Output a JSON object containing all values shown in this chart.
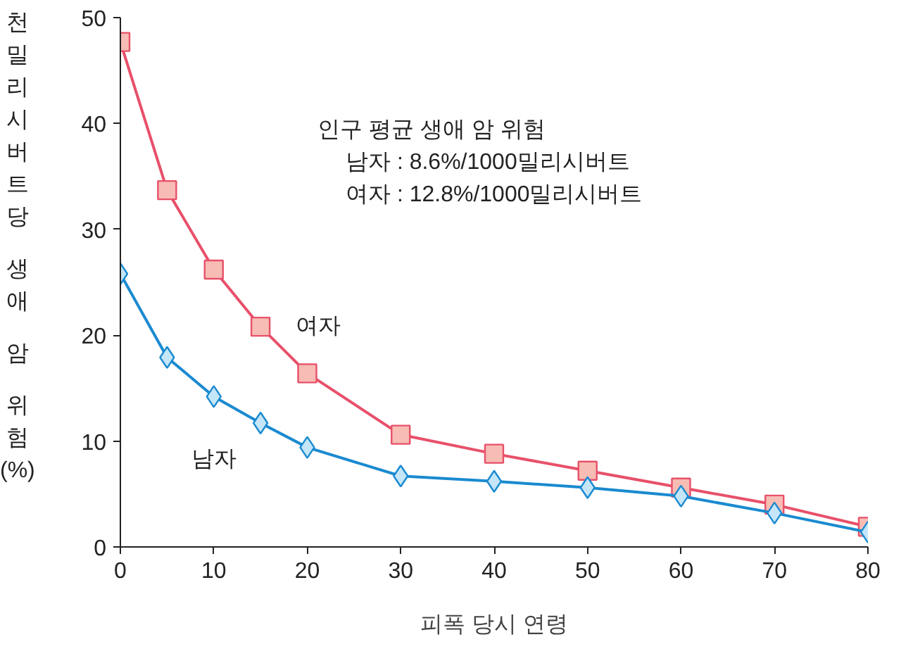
{
  "chart_data": {
    "type": "line",
    "xlabel": "피폭 당시 연령",
    "ylabel": "천밀리시버트당 생애 암 위험(%)",
    "x": [
      0,
      5,
      10,
      15,
      20,
      30,
      40,
      50,
      60,
      70,
      80
    ],
    "series": [
      {
        "name": "여자",
        "color": "#e8506a",
        "marker": "square",
        "values": [
          47.7,
          33.7,
          26.2,
          20.8,
          16.4,
          10.6,
          8.8,
          7.2,
          5.6,
          4.0,
          1.9
        ]
      },
      {
        "name": "남자",
        "color": "#1a8ad0",
        "marker": "diamond",
        "values": [
          25.8,
          17.9,
          14.2,
          11.7,
          9.4,
          6.7,
          6.2,
          5.6,
          4.8,
          3.2,
          1.4
        ]
      }
    ],
    "xlim": [
      0,
      80
    ],
    "xticks": [
      0,
      10,
      20,
      30,
      40,
      50,
      60,
      70,
      80
    ],
    "ylim": [
      0,
      50
    ],
    "yticks": [
      0,
      10,
      20,
      30,
      40,
      50
    ],
    "grid": false,
    "annotations": [
      "인구 평균 생애 암 위험",
      "남자 : 8.6%/1000밀리시버트",
      "여자 : 12.8%/1000밀리시버트"
    ]
  }
}
